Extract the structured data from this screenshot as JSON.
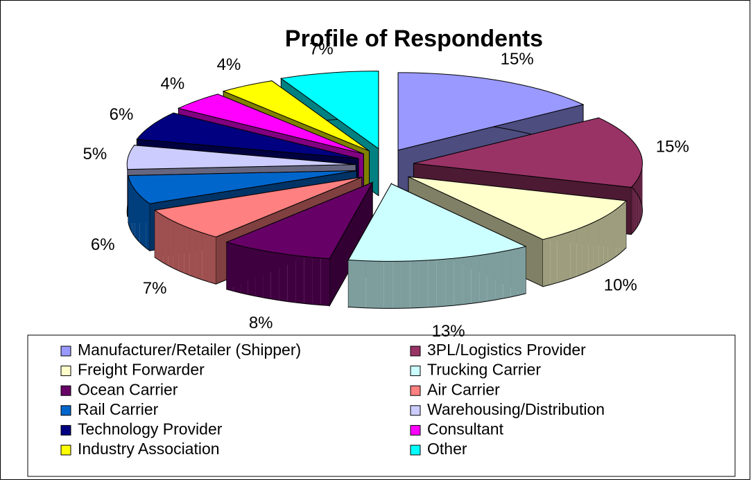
{
  "chart_data": {
    "type": "pie",
    "title": "Profile of Respondents",
    "categories": [
      "Manufacturer/Retailer (Shipper)",
      "3PL/Logistics Provider",
      "Freight Forwarder",
      "Trucking Carrier",
      "Ocean Carrier",
      "Air Carrier",
      "Rail Carrier",
      "Warehousing/Distribution",
      "Technology Provider",
      "Consultant",
      "Industry Association",
      "Other"
    ],
    "values": [
      15,
      15,
      10,
      13,
      8,
      7,
      6,
      5,
      6,
      4,
      4,
      7
    ],
    "value_labels": [
      "15%",
      "15%",
      "10%",
      "13%",
      "8%",
      "7%",
      "6%",
      "5%",
      "6%",
      "4%",
      "4%",
      "7%"
    ],
    "colors": [
      "#9999ff",
      "#993366",
      "#ffffcc",
      "#ccffff",
      "#660066",
      "#ff8080",
      "#0066cc",
      "#ccccff",
      "#000080",
      "#ff00ff",
      "#ffff00",
      "#00ffff"
    ],
    "legend": "bottom"
  }
}
